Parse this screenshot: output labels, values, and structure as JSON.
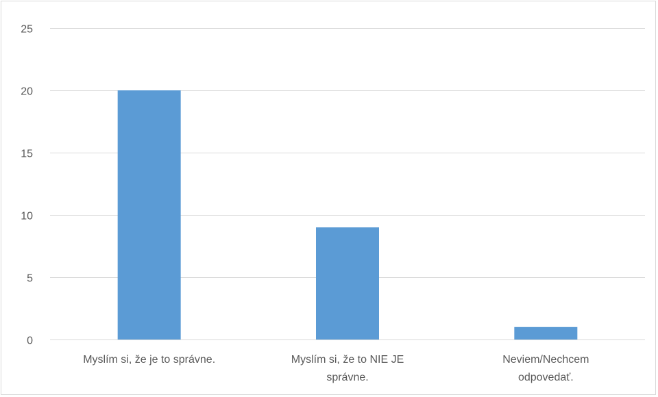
{
  "chart_data": {
    "type": "bar",
    "categories": [
      [
        "Myslím si, že je to správne."
      ],
      [
        "Myslím si, že to NIE JE",
        "správne."
      ],
      [
        "Neviem/Nechcem",
        "odpovedať."
      ]
    ],
    "values": [
      20,
      9,
      1
    ],
    "ylim": [
      0,
      25
    ],
    "yticks": [
      0,
      5,
      10,
      15,
      20,
      25
    ],
    "grid": true,
    "legend": "none",
    "colors": {
      "bar": "#5b9bd5",
      "grid": "#d9d9d9",
      "axis": "#d9d9d9",
      "text": "#595959"
    }
  }
}
